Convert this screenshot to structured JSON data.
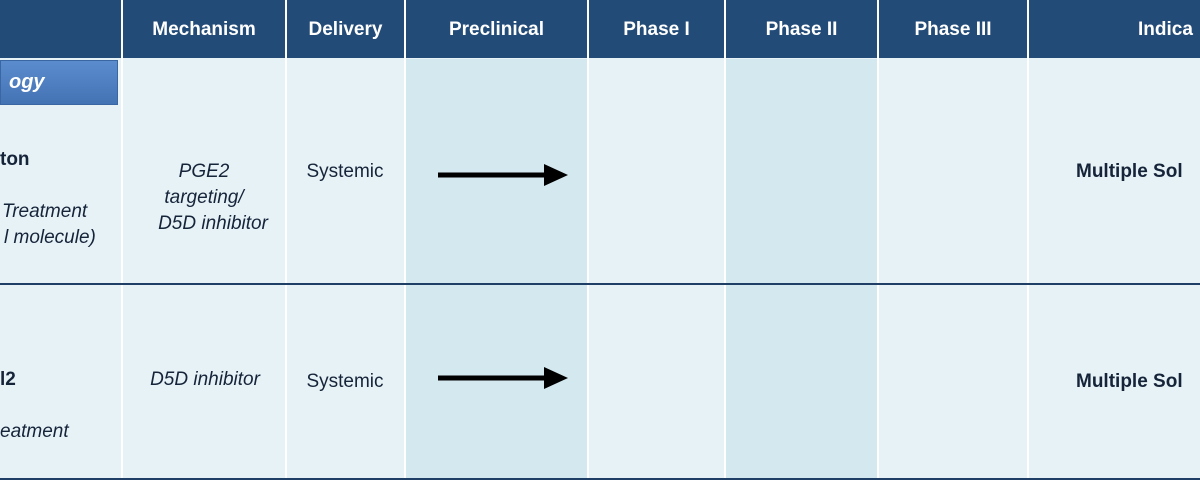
{
  "category_label": "ogy",
  "table": {
    "header": [
      "Mechanism",
      "Delivery",
      "Preclinical",
      "Phase I",
      "Phase II",
      "Phase III",
      "Indica"
    ],
    "rows": [
      {
        "name": "ton",
        "detail": [
          "Treatment",
          "l molecule)"
        ],
        "mechanism": [
          "PGE2",
          "targeting/",
          "D5D inhibitor"
        ],
        "delivery": "Systemic",
        "indication": "Multiple Sol"
      },
      {
        "name": "l2",
        "detail": [
          "eatment"
        ],
        "mechanism": [
          "D5D inhibitor"
        ],
        "delivery": "Systemic",
        "indication": "Multiple Sol"
      }
    ]
  }
}
